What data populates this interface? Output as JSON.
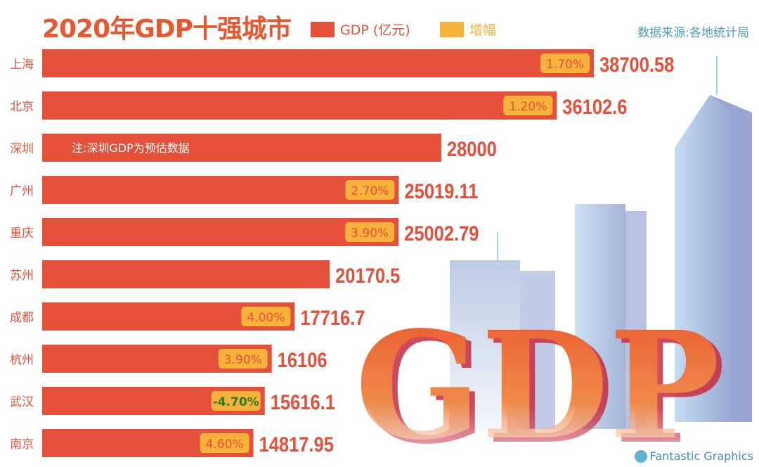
{
  "title": "2020年GDP十强城市",
  "legend": [
    {
      "label": "GDP (亿元)",
      "color": "#e5503a"
    },
    {
      "label": "增幅",
      "color": "#f7b23b"
    }
  ],
  "source": "数据来源:各地统计局",
  "brand": "Fantastic Graphics",
  "background_text": "GDP",
  "colors": {
    "bar": "#e5503a",
    "badge": "#f7b23b",
    "badge_text": "#e5503a",
    "badge_negative_text": "#2e7d1e",
    "value_text": "#e5503a",
    "label_text": "#e5503a"
  },
  "chart_data": {
    "type": "bar",
    "orientation": "horizontal",
    "title": "2020年GDP十强城市",
    "categories": [
      "上海",
      "北京",
      "深圳",
      "广州",
      "重庆",
      "苏州",
      "成都",
      "杭州",
      "武汉",
      "南京"
    ],
    "series": [
      {
        "name": "GDP (亿元)",
        "values": [
          38700.58,
          36102.6,
          28000,
          25019.11,
          25002.79,
          20170.5,
          17716.7,
          16106,
          15616.1,
          14817.95
        ]
      },
      {
        "name": "增幅",
        "values": [
          "1.70%",
          "1.20%",
          null,
          "2.70%",
          "3.90%",
          null,
          "4.00%",
          "3.90%",
          "-4.70%",
          "4.60%"
        ]
      }
    ],
    "value_labels": [
      "38700.58",
      "36102.6",
      "28000",
      "25019.11",
      "25002.79",
      "20170.5",
      "17716.7",
      "16106",
      "15616.1",
      "14817.95"
    ],
    "annotations": [
      {
        "category": "深圳",
        "text": "注:深圳GDP为预估数据"
      }
    ],
    "xlim": [
      0,
      40000
    ],
    "grid": false,
    "legend_position": "top"
  }
}
